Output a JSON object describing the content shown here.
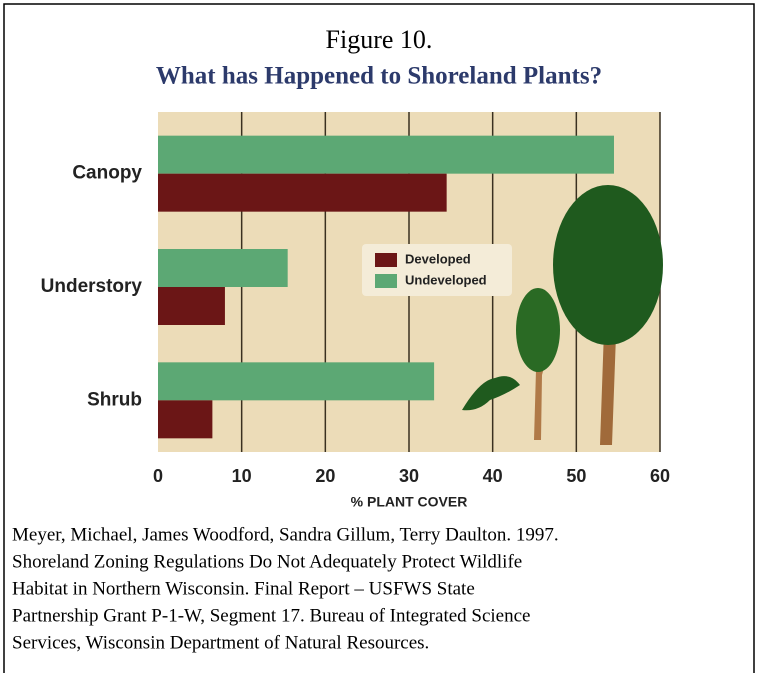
{
  "chart_data": {
    "type": "bar",
    "orientation": "horizontal",
    "title": "Figure 10.",
    "subtitle": "What has Happened to Shoreland Plants?",
    "x_label": "% PLANT COVER",
    "categories": [
      "Canopy",
      "Understory",
      "Shrub"
    ],
    "series": [
      {
        "name": "Undeveloped",
        "color": "#5ca874",
        "values": [
          54.5,
          15.5,
          33
        ]
      },
      {
        "name": "Developed",
        "color": "#6b1616",
        "values": [
          34.5,
          8,
          6.5
        ]
      }
    ],
    "xlim": [
      0,
      60
    ],
    "xticks": [
      0,
      10,
      20,
      30,
      40,
      50,
      60
    ],
    "grid": true,
    "legend": "center",
    "citation": [
      "Meyer, Michael, James Woodford, Sandra Gillum, Terry Daulton. 1997.",
      "Shoreland Zoning Regulations Do Not Adequately Protect Wildlife",
      "Habitat in Northern Wisconsin.  Final Report – USFWS State",
      "Partnership Grant P-1-W, Segment 17. Bureau of Integrated Science",
      "Services, Wisconsin Department of Natural Resources."
    ]
  }
}
